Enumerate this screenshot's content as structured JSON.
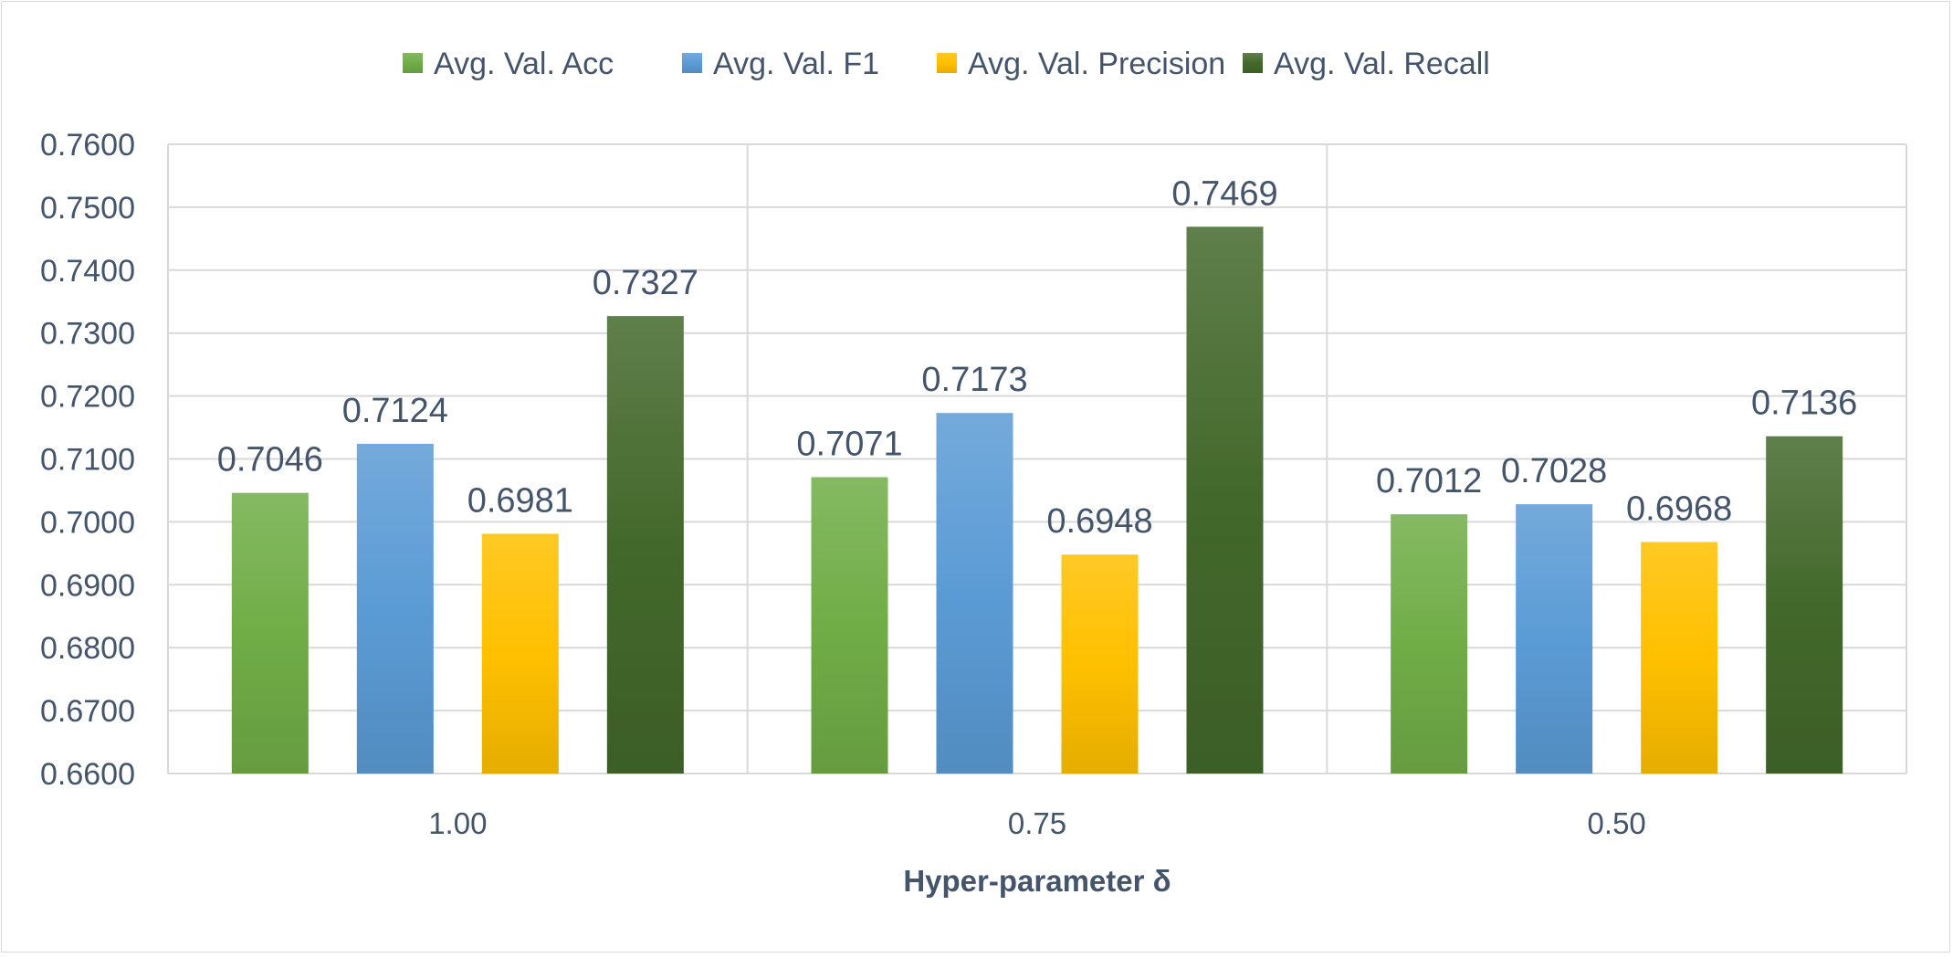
{
  "chart_data": {
    "type": "bar",
    "title": "",
    "xlabel": "Hyper-parameter δ",
    "ylabel": "",
    "ylim": [
      0.66,
      0.76
    ],
    "yticks": [
      "0.6600",
      "0.6700",
      "0.6800",
      "0.6900",
      "0.7000",
      "0.7100",
      "0.7200",
      "0.7300",
      "0.7400",
      "0.7500",
      "0.7600"
    ],
    "categories": [
      "1.00",
      "0.75",
      "0.50"
    ],
    "series": [
      {
        "name": "Avg. Val. Acc",
        "color": "#70ad47",
        "values": [
          0.7046,
          0.7071,
          0.7012
        ],
        "labels": [
          "0.7046",
          "0.7071",
          "0.7012"
        ]
      },
      {
        "name": "Avg. Val. F1",
        "color": "#5b9bd5",
        "values": [
          0.7124,
          0.7173,
          0.7028
        ],
        "labels": [
          "0.7124",
          "0.7173",
          "0.7028"
        ]
      },
      {
        "name": "Avg. Val. Precision",
        "color": "#ffc000",
        "values": [
          0.6981,
          0.6948,
          0.6968
        ],
        "labels": [
          "0.6981",
          "0.6948",
          "0.6968"
        ]
      },
      {
        "name": "Avg. Val. Recall",
        "color": "#43682b",
        "values": [
          0.7327,
          0.7469,
          0.7136
        ],
        "labels": [
          "0.7327",
          "0.7469",
          "0.7136"
        ]
      }
    ],
    "grid": true,
    "legend_position": "top"
  }
}
